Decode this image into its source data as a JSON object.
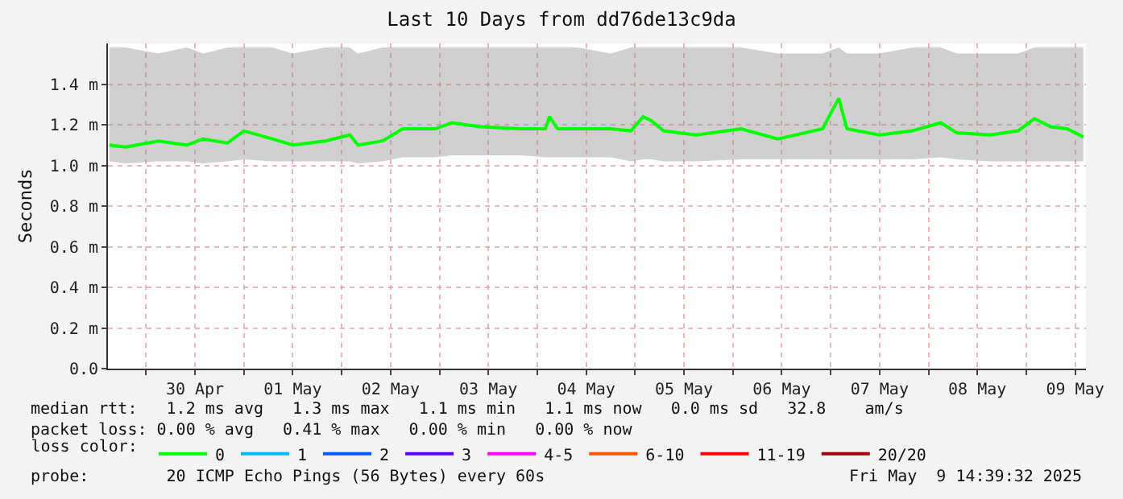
{
  "chart_data": {
    "type": "line",
    "title": "Last 10 Days from dd76de13c9da",
    "ylabel": "Seconds",
    "legend_title": "loss color:",
    "legend": "bottom",
    "grid": true,
    "marker": "none",
    "line_style": "solid",
    "xlim": [
      "2025-04-29T14:39",
      "2025-05-09T14:39"
    ],
    "xticks": [
      {
        "value": "2025-04-30",
        "label": null
      },
      {
        "value": "2025-04-30T12:00",
        "label": "30 Apr"
      },
      {
        "value": "2025-05-01",
        "label": null
      },
      {
        "value": "2025-05-01T12:00",
        "label": "01 May"
      },
      {
        "value": "2025-05-02",
        "label": null
      },
      {
        "value": "2025-05-02T12:00",
        "label": "02 May"
      },
      {
        "value": "2025-05-03",
        "label": null
      },
      {
        "value": "2025-05-03T12:00",
        "label": "03 May"
      },
      {
        "value": "2025-05-04",
        "label": null
      },
      {
        "value": "2025-05-04T12:00",
        "label": "04 May"
      },
      {
        "value": "2025-05-05",
        "label": null
      },
      {
        "value": "2025-05-05T12:00",
        "label": "05 May"
      },
      {
        "value": "2025-05-06",
        "label": null
      },
      {
        "value": "2025-05-06T12:00",
        "label": "06 May"
      },
      {
        "value": "2025-05-07",
        "label": null
      },
      {
        "value": "2025-05-07T12:00",
        "label": "07 May"
      },
      {
        "value": "2025-05-08",
        "label": null
      },
      {
        "value": "2025-05-08T12:00",
        "label": "08 May"
      },
      {
        "value": "2025-05-09",
        "label": null
      },
      {
        "value": "2025-05-09T12:00",
        "label": "09 May"
      }
    ],
    "ylim": [
      0,
      1.6
    ],
    "yticks": [
      {
        "value": 0,
        "label": "0.0"
      },
      {
        "value": 0.2,
        "label": "0.2 m"
      },
      {
        "value": 0.4,
        "label": "0.4 m"
      },
      {
        "value": 0.6,
        "label": "0.6 m"
      },
      {
        "value": 0.8,
        "label": "0.8 m"
      },
      {
        "value": 1.0,
        "label": "1.0 m"
      },
      {
        "value": 1.2,
        "label": "1.2 m"
      },
      {
        "value": 1.4,
        "label": "1.4 m"
      }
    ],
    "x": [
      "2025-04-29T15:00",
      "2025-04-29T19:00",
      "2025-04-30T03:00",
      "2025-04-30T10:00",
      "2025-04-30T14:00",
      "2025-04-30T20:00",
      "2025-05-01T00:00",
      "2025-05-01T07:00",
      "2025-05-01T12:00",
      "2025-05-01T20:00",
      "2025-05-02T02:00",
      "2025-05-02T04:00",
      "2025-05-02T10:00",
      "2025-05-02T15:00",
      "2025-05-02T23:00",
      "2025-05-03T03:00",
      "2025-05-03T10:00",
      "2025-05-03T20:00",
      "2025-05-04T02:00",
      "2025-05-04T03:00",
      "2025-05-04T05:00",
      "2025-05-04T10:00",
      "2025-05-04T18:00",
      "2025-05-04T23:00",
      "2025-05-05T02:00",
      "2025-05-05T04:00",
      "2025-05-05T07:00",
      "2025-05-05T15:00",
      "2025-05-06T02:00",
      "2025-05-06T11:00",
      "2025-05-06T22:00",
      "2025-05-07T02:00",
      "2025-05-07T04:00",
      "2025-05-07T12:00",
      "2025-05-07T20:00",
      "2025-05-08T03:00",
      "2025-05-08T07:00",
      "2025-05-08T15:00",
      "2025-05-08T22:00",
      "2025-05-09T02:00",
      "2025-05-09T06:00",
      "2025-05-09T10:00",
      "2025-05-09T14:00"
    ],
    "series": [
      {
        "name": "0",
        "color": "#00ff00",
        "values": [
          1.1,
          1.09,
          1.12,
          1.1,
          1.13,
          1.11,
          1.17,
          1.13,
          1.1,
          1.12,
          1.15,
          1.1,
          1.12,
          1.18,
          1.18,
          1.21,
          1.19,
          1.18,
          1.18,
          1.24,
          1.18,
          1.18,
          1.18,
          1.17,
          1.24,
          1.22,
          1.17,
          1.15,
          1.18,
          1.13,
          1.18,
          1.33,
          1.18,
          1.15,
          1.17,
          1.21,
          1.16,
          1.15,
          1.17,
          1.23,
          1.19,
          1.18,
          1.14
        ],
        "lower": [
          1.02,
          1.01,
          1.02,
          1.02,
          1.01,
          1.02,
          1.03,
          1.02,
          1.02,
          1.02,
          1.02,
          1.01,
          1.02,
          1.04,
          1.04,
          1.05,
          1.05,
          1.05,
          1.04,
          1.04,
          1.04,
          1.04,
          1.04,
          1.02,
          1.03,
          1.03,
          1.02,
          1.02,
          1.03,
          1.03,
          1.03,
          1.03,
          1.03,
          1.03,
          1.03,
          1.04,
          1.03,
          1.02,
          1.02,
          1.02,
          1.02,
          1.02,
          1.02
        ],
        "upper": [
          1.58,
          1.58,
          1.55,
          1.58,
          1.55,
          1.58,
          1.58,
          1.58,
          1.55,
          1.58,
          1.58,
          1.55,
          1.58,
          1.58,
          1.58,
          1.58,
          1.58,
          1.58,
          1.58,
          1.58,
          1.58,
          1.58,
          1.55,
          1.58,
          1.58,
          1.58,
          1.58,
          1.58,
          1.58,
          1.55,
          1.55,
          1.58,
          1.55,
          1.55,
          1.58,
          1.58,
          1.55,
          1.55,
          1.55,
          1.58,
          1.58,
          1.58,
          1.58
        ]
      },
      {
        "name": "1",
        "color": "#00b8ff",
        "values": [
          null,
          null,
          null,
          null,
          null,
          null,
          null,
          null,
          null,
          null,
          null,
          null,
          null,
          null,
          null,
          null,
          null,
          null,
          null,
          null,
          null,
          null,
          null,
          null,
          null,
          null,
          null,
          null,
          null,
          null,
          null,
          null,
          null,
          null,
          null,
          null,
          null,
          null,
          null,
          null,
          null,
          null,
          null
        ]
      },
      {
        "name": "2",
        "color": "#0059ff",
        "values": [
          null,
          null,
          null,
          null,
          null,
          null,
          null,
          null,
          null,
          null,
          null,
          null,
          null,
          null,
          null,
          null,
          null,
          null,
          null,
          null,
          null,
          null,
          null,
          null,
          null,
          null,
          null,
          null,
          null,
          null,
          null,
          null,
          null,
          null,
          null,
          null,
          null,
          null,
          null,
          null,
          null,
          null,
          null
        ]
      },
      {
        "name": "3",
        "color": "#5e00ff",
        "values": [
          null,
          null,
          null,
          null,
          null,
          null,
          null,
          null,
          null,
          null,
          null,
          null,
          null,
          null,
          null,
          null,
          null,
          null,
          null,
          null,
          null,
          null,
          null,
          null,
          null,
          null,
          null,
          null,
          null,
          null,
          null,
          null,
          null,
          null,
          null,
          null,
          null,
          null,
          null,
          null,
          null,
          null,
          null
        ]
      },
      {
        "name": "4-5",
        "color": "#ff00ff",
        "values": [
          null,
          null,
          null,
          null,
          null,
          null,
          null,
          null,
          null,
          null,
          null,
          null,
          null,
          null,
          null,
          null,
          null,
          null,
          null,
          null,
          null,
          null,
          null,
          null,
          null,
          null,
          null,
          null,
          null,
          null,
          null,
          null,
          null,
          null,
          null,
          null,
          null,
          null,
          null,
          null,
          null,
          null,
          null
        ]
      },
      {
        "name": "6-10",
        "color": "#ff5500",
        "values": [
          null,
          null,
          null,
          null,
          null,
          null,
          null,
          null,
          null,
          null,
          null,
          null,
          null,
          null,
          null,
          null,
          null,
          null,
          null,
          null,
          null,
          null,
          null,
          null,
          null,
          null,
          null,
          null,
          null,
          null,
          null,
          null,
          null,
          null,
          null,
          null,
          null,
          null,
          null,
          null,
          null,
          null,
          null
        ]
      },
      {
        "name": "11-19",
        "color": "#ff0000",
        "values": [
          null,
          null,
          null,
          null,
          null,
          null,
          null,
          null,
          null,
          null,
          null,
          null,
          null,
          null,
          null,
          null,
          null,
          null,
          null,
          null,
          null,
          null,
          null,
          null,
          null,
          null,
          null,
          null,
          null,
          null,
          null,
          null,
          null,
          null,
          null,
          null,
          null,
          null,
          null,
          null,
          null,
          null,
          null
        ]
      },
      {
        "name": "20/20",
        "color": "#a10000",
        "values": [
          null,
          null,
          null,
          null,
          null,
          null,
          null,
          null,
          null,
          null,
          null,
          null,
          null,
          null,
          null,
          null,
          null,
          null,
          null,
          null,
          null,
          null,
          null,
          null,
          null,
          null,
          null,
          null,
          null,
          null,
          null,
          null,
          null,
          null,
          null,
          null,
          null,
          null,
          null,
          null,
          null,
          null,
          null
        ]
      }
    ],
    "annotations": [
      "median rtt:   1.2 ms avg   1.3 ms max   1.1 ms min   1.1 ms now   0.0 ms sd   32.8    am/s",
      "packet loss: 0.00 % avg   0.41 % max   0.00 % min   0.00 % now",
      "probe:        20 ICMP Echo Pings (56 Bytes) every 60s",
      "Fri May  9 14:39:32 2025"
    ]
  }
}
